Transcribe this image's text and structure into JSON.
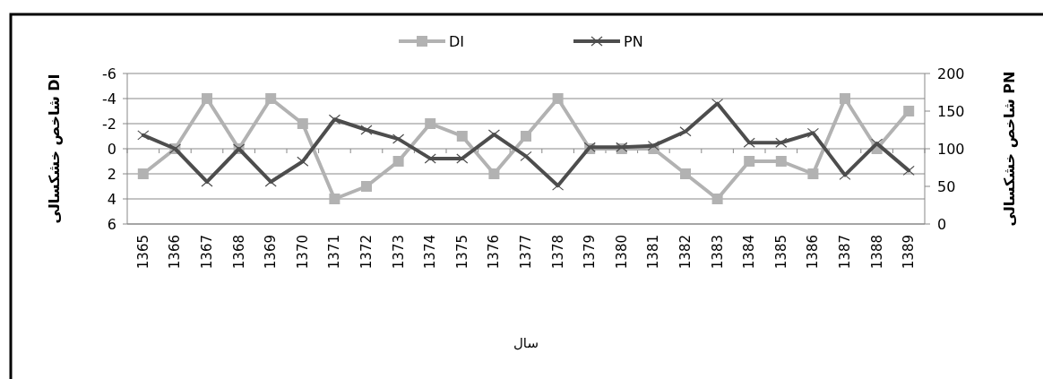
{
  "chart_data": {
    "type": "line",
    "xlabel": "سال",
    "ylabel": "شاخص خشکسالی DI",
    "y2label": "شاخص خشکسالی PN",
    "categories": [
      "1365",
      "1366",
      "1367",
      "1368",
      "1369",
      "1370",
      "1371",
      "1372",
      "1373",
      "1374",
      "1375",
      "1376",
      "1377",
      "1378",
      "1379",
      "1380",
      "1381",
      "1382",
      "1383",
      "1384",
      "1385",
      "1386",
      "1387",
      "1388",
      "1389"
    ],
    "series": [
      {
        "name": "DI",
        "color": "#b2b2b2",
        "marker": "square",
        "values": [
          2,
          0,
          -4,
          0,
          -4,
          -2,
          4,
          3,
          1,
          -2,
          -1,
          2,
          -1,
          -4,
          0,
          0,
          0,
          2,
          4,
          1,
          1,
          2,
          -4,
          0,
          -3
        ]
      },
      {
        "name": "PN",
        "color": "#4d4d4d",
        "marker": "cross",
        "axis": "y2",
        "values": [
          118,
          100,
          56,
          100,
          56,
          83,
          139,
          125,
          113,
          87,
          87,
          119,
          90,
          51,
          102,
          102,
          104,
          123,
          160,
          108,
          108,
          121,
          65,
          107,
          71
        ]
      }
    ],
    "ylim": [
      6,
      -6
    ],
    "yticks": [
      -6,
      -4,
      -2,
      0,
      2,
      4,
      6
    ],
    "y2lim": [
      0,
      200
    ],
    "y2ticks": [
      0,
      50,
      100,
      150,
      200
    ],
    "grid": "y",
    "legend": "top"
  }
}
